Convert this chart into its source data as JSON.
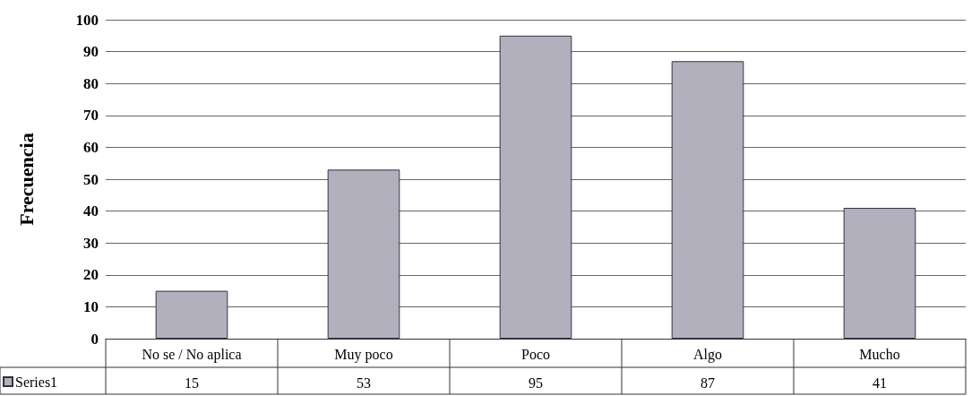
{
  "chart_data": {
    "type": "bar",
    "ylabel": "Frecuencia",
    "categories": [
      "No se / No aplica",
      "Muy poco",
      "Poco",
      "Algo",
      "Mucho"
    ],
    "series": [
      {
        "name": "Series1",
        "color": "#b1b0bc",
        "values": [
          15,
          53,
          95,
          87,
          41
        ]
      }
    ],
    "ylim": [
      0,
      100
    ],
    "yticks": [
      0,
      10,
      20,
      30,
      40,
      50,
      60,
      70,
      80,
      90,
      100
    ],
    "grid": "y",
    "legend": "bottom left",
    "data_labels": true
  }
}
